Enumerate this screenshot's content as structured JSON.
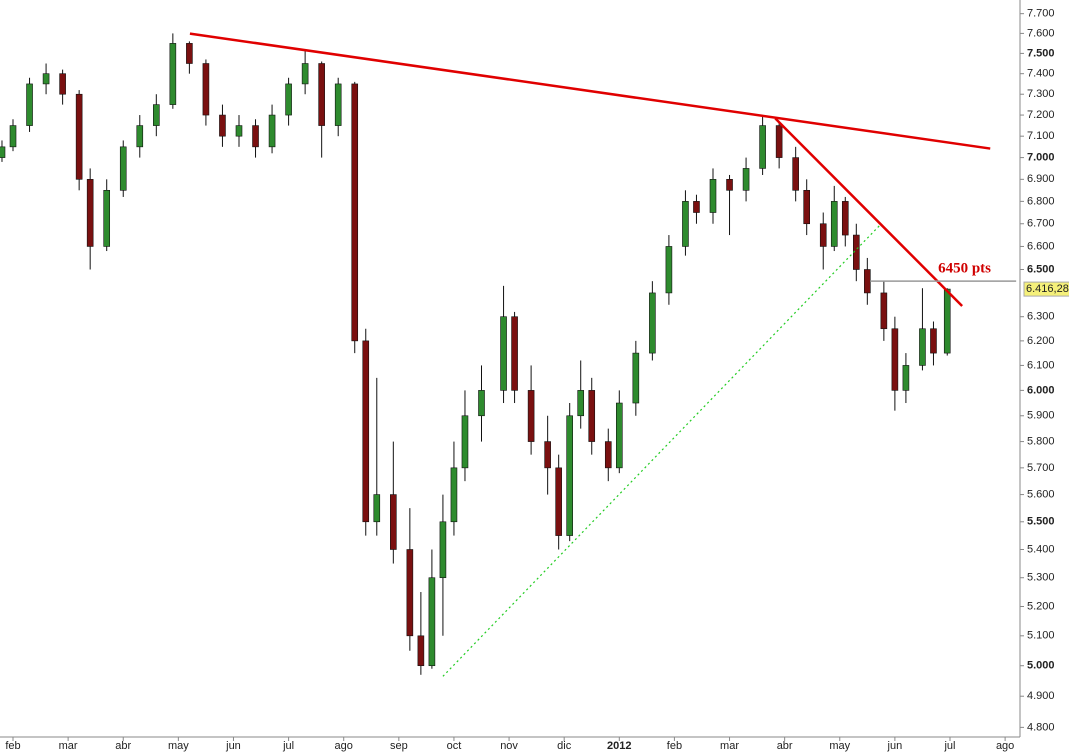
{
  "chart_data": {
    "type": "candlestick",
    "log_scale": true,
    "up_color": "#2e8b2e",
    "down_color": "#7a1010",
    "xlim": [
      -0.236,
      18.27
    ],
    "ylim": [
      4760,
      7770
    ],
    "xticks": [
      {
        "value": 0,
        "label": "feb"
      },
      {
        "value": 1,
        "label": "mar"
      },
      {
        "value": 2,
        "label": "abr"
      },
      {
        "value": 3,
        "label": "may"
      },
      {
        "value": 4,
        "label": "jun"
      },
      {
        "value": 5,
        "label": "jul"
      },
      {
        "value": 6,
        "label": "ago"
      },
      {
        "value": 7,
        "label": "sep"
      },
      {
        "value": 8,
        "label": "oct"
      },
      {
        "value": 9,
        "label": "nov"
      },
      {
        "value": 10,
        "label": "dic"
      },
      {
        "value": 11,
        "label": "2012"
      },
      {
        "value": 12,
        "label": "feb"
      },
      {
        "value": 13,
        "label": "mar"
      },
      {
        "value": 14,
        "label": "abr"
      },
      {
        "value": 15,
        "label": "may"
      },
      {
        "value": 16,
        "label": "jun"
      },
      {
        "value": 17,
        "label": "jul"
      },
      {
        "value": 18,
        "label": "ago"
      }
    ],
    "yticks": [
      {
        "value": 4800,
        "label": "4.800"
      },
      {
        "value": 4900,
        "label": "4.900"
      },
      {
        "value": 5000,
        "label": "5.000"
      },
      {
        "value": 5100,
        "label": "5.100"
      },
      {
        "value": 5200,
        "label": "5.200"
      },
      {
        "value": 5300,
        "label": "5.300"
      },
      {
        "value": 5400,
        "label": "5.400"
      },
      {
        "value": 5500,
        "label": "5.500"
      },
      {
        "value": 5600,
        "label": "5.600"
      },
      {
        "value": 5700,
        "label": "5.700"
      },
      {
        "value": 5800,
        "label": "5.800"
      },
      {
        "value": 5900,
        "label": "5.900"
      },
      {
        "value": 6000,
        "label": "6.000"
      },
      {
        "value": 6100,
        "label": "6.100"
      },
      {
        "value": 6200,
        "label": "6.200"
      },
      {
        "value": 6300,
        "label": "6.300"
      },
      {
        "value": 6500,
        "label": "6.500"
      },
      {
        "value": 6600,
        "label": "6.600"
      },
      {
        "value": 6700,
        "label": "6.700"
      },
      {
        "value": 6800,
        "label": "6.800"
      },
      {
        "value": 6900,
        "label": "6.900"
      },
      {
        "value": 7000,
        "label": "7.000"
      },
      {
        "value": 7100,
        "label": "7.100"
      },
      {
        "value": 7200,
        "label": "7.200"
      },
      {
        "value": 7300,
        "label": "7.300"
      },
      {
        "value": 7400,
        "label": "7.400"
      },
      {
        "value": 7500,
        "label": "7.500"
      },
      {
        "value": 7600,
        "label": "7.600"
      },
      {
        "value": 7700,
        "label": "7.700"
      }
    ],
    "x": [
      -0.2,
      0.0,
      0.3,
      0.6,
      0.9,
      1.2,
      1.4,
      1.7,
      2.0,
      2.3,
      2.6,
      2.9,
      3.2,
      3.5,
      3.8,
      4.1,
      4.4,
      4.7,
      5.0,
      5.3,
      5.6,
      5.9,
      6.2,
      6.4,
      6.6,
      6.9,
      7.2,
      7.4,
      7.6,
      7.8,
      8.0,
      8.2,
      8.5,
      8.9,
      9.1,
      9.4,
      9.7,
      9.9,
      10.1,
      10.3,
      10.5,
      10.8,
      11.0,
      11.3,
      11.6,
      11.9,
      12.2,
      12.4,
      12.7,
      13.0,
      13.3,
      13.6,
      13.9,
      14.2,
      14.4,
      14.7,
      14.9,
      15.1,
      15.3,
      15.5,
      15.8,
      16.0,
      16.2,
      16.5,
      16.7,
      16.95
    ],
    "open": [
      7000,
      7050,
      7150,
      7350,
      7400,
      7300,
      6900,
      6600,
      6850,
      7050,
      7150,
      7250,
      7550,
      7450,
      7200,
      7100,
      7150,
      7050,
      7200,
      7350,
      7450,
      7150,
      7350,
      6200,
      5500,
      5600,
      5400,
      5100,
      5000,
      5300,
      5500,
      5700,
      5900,
      6000,
      6300,
      6000,
      5800,
      5700,
      5450,
      5900,
      6000,
      5800,
      5700,
      5950,
      6150,
      6400,
      6600,
      6800,
      6750,
      6900,
      6850,
      6950,
      7150,
      7000,
      6850,
      6700,
      6600,
      6800,
      6650,
      6500,
      6400,
      6250,
      6000,
      6100,
      6250,
      6150
    ],
    "high": [
      7080,
      7180,
      7380,
      7450,
      7420,
      7320,
      6950,
      6900,
      7080,
      7200,
      7300,
      7600,
      7560,
      7470,
      7250,
      7200,
      7180,
      7250,
      7380,
      7520,
      7460,
      7380,
      7360,
      6250,
      6050,
      5800,
      5550,
      5250,
      5400,
      5600,
      5800,
      6000,
      6100,
      6430,
      6320,
      6100,
      5900,
      5750,
      5950,
      6120,
      6050,
      5850,
      6000,
      6200,
      6450,
      6650,
      6850,
      6830,
      6950,
      6920,
      7000,
      7200,
      7160,
      7050,
      6900,
      6750,
      6870,
      6820,
      6700,
      6550,
      6450,
      6300,
      6150,
      6420,
      6280,
      6420
    ],
    "low": [
      6980,
      7030,
      7120,
      7300,
      7250,
      6850,
      6500,
      6580,
      6820,
      7000,
      7100,
      7230,
      7400,
      7150,
      7050,
      7050,
      7000,
      7020,
      7150,
      7300,
      7000,
      7100,
      6150,
      5450,
      5450,
      5350,
      5050,
      4970,
      4990,
      5100,
      5450,
      5650,
      5800,
      5950,
      5950,
      5750,
      5600,
      5400,
      5430,
      5850,
      5750,
      5650,
      5680,
      5900,
      6120,
      6350,
      6560,
      6700,
      6700,
      6650,
      6800,
      6920,
      6950,
      6800,
      6650,
      6500,
      6580,
      6600,
      6450,
      6350,
      6200,
      5920,
      5950,
      6080,
      6100,
      6140
    ],
    "close": [
      7050,
      7150,
      7350,
      7400,
      7300,
      6900,
      6600,
      6850,
      7050,
      7150,
      7250,
      7550,
      7450,
      7200,
      7100,
      7150,
      7050,
      7200,
      7350,
      7450,
      7150,
      7350,
      6200,
      5500,
      5600,
      5400,
      5100,
      5000,
      5300,
      5500,
      5700,
      5900,
      6000,
      6300,
      6000,
      5800,
      5700,
      5450,
      5900,
      6000,
      5800,
      5700,
      5950,
      6150,
      6400,
      6600,
      6800,
      6750,
      6900,
      6850,
      6950,
      7150,
      7000,
      6850,
      6700,
      6600,
      6800,
      6650,
      6500,
      6400,
      6250,
      6000,
      6100,
      6250,
      6150,
      6416.28
    ],
    "trendlines": [
      {
        "color": "#e00000",
        "x": [
          3.21,
          17.73
        ],
        "y": [
          7599,
          7042
        ]
      },
      {
        "color": "#e00000",
        "x": [
          13.83,
          17.22
        ],
        "y": [
          7184,
          6345
        ]
      },
      {
        "color": "#22cc22",
        "style": "dotted",
        "x": [
          7.8,
          15.73
        ],
        "y": [
          4965,
          6694
        ]
      }
    ],
    "level_line": {
      "value": 6450,
      "label": "6450 pts",
      "x": [
        15.55,
        18.2
      ],
      "color": "#999999",
      "label_color": "#d00000"
    },
    "last_price": {
      "value": 6416.28,
      "label": "6.416,28",
      "color": "#f5f07a"
    }
  }
}
